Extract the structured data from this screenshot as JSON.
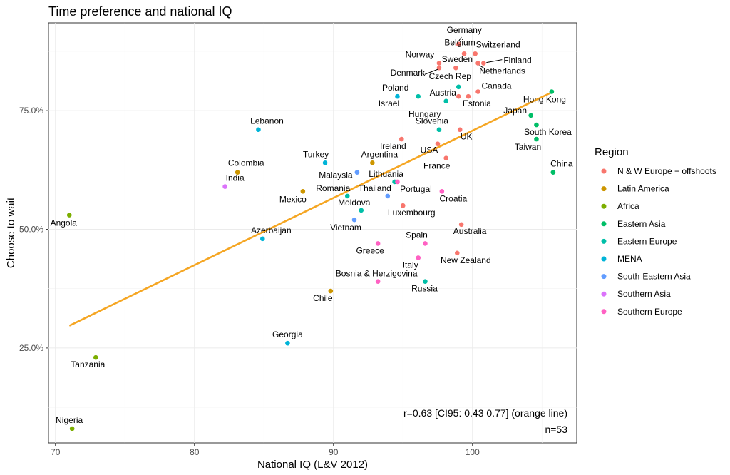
{
  "chart_data": {
    "type": "scatter",
    "title": "Time preference and national IQ",
    "xlabel": "National IQ (L&V 2012)",
    "ylabel": "Choose to wait",
    "xlim": [
      69.5,
      107.5
    ],
    "ylim": [
      5,
      93.5
    ],
    "x_ticks": [
      70,
      80,
      90,
      100
    ],
    "y_ticks": [
      25,
      50,
      75
    ],
    "y_tick_labels": [
      "25.0%",
      "50.0%",
      "75.0%"
    ],
    "grid": true,
    "legend": {
      "title": "Region",
      "position": "right",
      "entries": [
        {
          "name": "N & W Europe + offshoots",
          "color": "#f8766d"
        },
        {
          "name": "Latin America",
          "color": "#cd9600"
        },
        {
          "name": "Africa",
          "color": "#7cae00"
        },
        {
          "name": "Eastern Asia",
          "color": "#00be67"
        },
        {
          "name": "Eastern Europe",
          "color": "#00bfa8"
        },
        {
          "name": "MENA",
          "color": "#00b4d8"
        },
        {
          "name": "South-Eastern Asia",
          "color": "#619cff"
        },
        {
          "name": "Southern Asia",
          "color": "#db72fb"
        },
        {
          "name": "Southern Europe",
          "color": "#ff61c3"
        }
      ]
    },
    "fit_line": {
      "color": "#f5a623",
      "x": [
        71,
        105.8
      ],
      "y": [
        29.7,
        79.0
      ]
    },
    "annotations": [
      "r=0.63 [CI95: 0.43 0.77] (orange line)",
      "n=53"
    ],
    "points": [
      {
        "label": "Germany",
        "x": 99.0,
        "y": 89.0,
        "region": 0
      },
      {
        "label": "Belgium",
        "x": 99.4,
        "y": 87.0,
        "region": 0
      },
      {
        "label": "Switzerland",
        "x": 100.2,
        "y": 87.0,
        "region": 0
      },
      {
        "label": "Finland",
        "x": 100.8,
        "y": 85.0,
        "region": 0
      },
      {
        "label": "Netherlands",
        "x": 100.4,
        "y": 85.0,
        "region": 0
      },
      {
        "label": "Norway",
        "x": 97.6,
        "y": 85.0,
        "region": 0
      },
      {
        "label": "Denmark",
        "x": 97.6,
        "y": 84.0,
        "region": 0
      },
      {
        "label": "Sweden",
        "x": 98.8,
        "y": 84.0,
        "region": 0
      },
      {
        "label": "Czech Rep",
        "x": 99.0,
        "y": 80.0,
        "region": 4
      },
      {
        "label": "Poland",
        "x": 96.1,
        "y": 78.0,
        "region": 4
      },
      {
        "label": "Israel",
        "x": 94.6,
        "y": 78.0,
        "region": 5
      },
      {
        "label": "Austria",
        "x": 99.0,
        "y": 78.0,
        "region": 0
      },
      {
        "label": "Canada",
        "x": 100.4,
        "y": 79.0,
        "region": 0
      },
      {
        "label": "Estonia",
        "x": 99.7,
        "y": 78.0,
        "region": 0
      },
      {
        "label": "Hungary",
        "x": 98.1,
        "y": 77.0,
        "region": 4
      },
      {
        "label": "Hong Kong",
        "x": 105.7,
        "y": 79.0,
        "region": 3
      },
      {
        "label": "Japan",
        "x": 104.2,
        "y": 74.0,
        "region": 3
      },
      {
        "label": "South Korea",
        "x": 104.6,
        "y": 72.0,
        "region": 3
      },
      {
        "label": "Taiwan",
        "x": 104.6,
        "y": 69.0,
        "region": 3
      },
      {
        "label": "China",
        "x": 105.8,
        "y": 62.0,
        "region": 3
      },
      {
        "label": "Lebanon",
        "x": 84.6,
        "y": 71.0,
        "region": 5
      },
      {
        "label": "Slovenia",
        "x": 97.6,
        "y": 71.0,
        "region": 4
      },
      {
        "label": "UK",
        "x": 99.1,
        "y": 71.0,
        "region": 0
      },
      {
        "label": "Ireland",
        "x": 94.9,
        "y": 69.0,
        "region": 0
      },
      {
        "label": "USA",
        "x": 97.5,
        "y": 68.0,
        "region": 0
      },
      {
        "label": "France",
        "x": 98.1,
        "y": 65.0,
        "region": 0
      },
      {
        "label": "Turkey",
        "x": 89.4,
        "y": 64.0,
        "region": 5
      },
      {
        "label": "Argentina",
        "x": 92.8,
        "y": 64.0,
        "region": 1
      },
      {
        "label": "Colombia",
        "x": 83.1,
        "y": 62.0,
        "region": 1
      },
      {
        "label": "Malaysia",
        "x": 91.7,
        "y": 62.0,
        "region": 6
      },
      {
        "label": "Lithuania",
        "x": 94.4,
        "y": 60.0,
        "region": 4
      },
      {
        "label": "Portugal",
        "x": 94.6,
        "y": 60.0,
        "region": 8
      },
      {
        "label": "India",
        "x": 82.2,
        "y": 59.0,
        "region": 7
      },
      {
        "label": "Mexico",
        "x": 87.8,
        "y": 58.0,
        "region": 1
      },
      {
        "label": "Romania",
        "x": 91.0,
        "y": 57.0,
        "region": 4
      },
      {
        "label": "Thailand",
        "x": 93.9,
        "y": 57.0,
        "region": 6
      },
      {
        "label": "Croatia",
        "x": 97.8,
        "y": 58.0,
        "region": 8
      },
      {
        "label": "Moldova",
        "x": 92.0,
        "y": 54.0,
        "region": 4
      },
      {
        "label": "Luxembourg",
        "x": 95.0,
        "y": 55.0,
        "region": 0
      },
      {
        "label": "Angola",
        "x": 71.0,
        "y": 53.0,
        "region": 2
      },
      {
        "label": "Vietnam",
        "x": 91.5,
        "y": 52.0,
        "region": 6
      },
      {
        "label": "Australia",
        "x": 99.2,
        "y": 51.0,
        "region": 0
      },
      {
        "label": "Azerbaijan",
        "x": 84.9,
        "y": 48.0,
        "region": 5
      },
      {
        "label": "Greece",
        "x": 93.2,
        "y": 47.0,
        "region": 8
      },
      {
        "label": "Spain",
        "x": 96.6,
        "y": 47.0,
        "region": 8
      },
      {
        "label": "New Zealand",
        "x": 98.9,
        "y": 45.0,
        "region": 0
      },
      {
        "label": "Italy",
        "x": 96.1,
        "y": 44.0,
        "region": 8
      },
      {
        "label": "Bosnia & Herzigovina",
        "x": 93.2,
        "y": 39.0,
        "region": 8
      },
      {
        "label": "Russia",
        "x": 96.6,
        "y": 39.0,
        "region": 4
      },
      {
        "label": "Chile",
        "x": 89.8,
        "y": 37.0,
        "region": 1
      },
      {
        "label": "Georgia",
        "x": 86.7,
        "y": 26.0,
        "region": 5
      },
      {
        "label": "Tanzania",
        "x": 72.9,
        "y": 23.0,
        "region": 2
      },
      {
        "label": "Nigeria",
        "x": 71.2,
        "y": 8.0,
        "region": 2
      }
    ]
  }
}
